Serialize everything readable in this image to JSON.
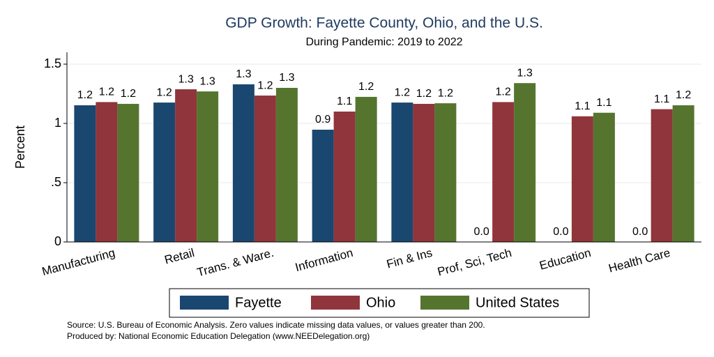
{
  "chart_data": {
    "type": "bar",
    "title": "GDP Growth: Fayette County, Ohio, and the U.S.",
    "subtitle": "During Pandemic: 2019 to 2022",
    "y_label": "Percent",
    "categories": [
      "Manufacturing",
      "Retail",
      "Trans. & Ware.",
      "Information",
      "Fin & Ins",
      "Prof, Sci, Tech",
      "Education",
      "Health Care"
    ],
    "series": [
      {
        "name": "Fayette",
        "color": "#1a476f",
        "values": [
          1.153,
          1.176,
          1.33,
          0.947,
          1.176,
          0,
          0,
          0
        ],
        "value_labels": [
          "1.2",
          "1.2",
          "1.3",
          "0.9",
          "1.2",
          "0.0",
          "0.0",
          "0.0"
        ]
      },
      {
        "name": "Ohio",
        "color": "#90353b",
        "values": [
          1.18,
          1.288,
          1.235,
          1.1,
          1.165,
          1.18,
          1.06,
          1.12
        ],
        "value_labels": [
          "1.2",
          "1.3",
          "1.2",
          "1.1",
          "1.2",
          "1.2",
          "1.1",
          "1.1"
        ]
      },
      {
        "name": "United States",
        "color": "#55752f",
        "values": [
          1.165,
          1.27,
          1.3,
          1.224,
          1.17,
          1.34,
          1.09,
          1.153
        ],
        "value_labels": [
          "1.2",
          "1.3",
          "1.3",
          "1.2",
          "1.2",
          "1.3",
          "1.1",
          "1.2"
        ]
      }
    ],
    "ylim": [
      0,
      1.6
    ],
    "yticks": [
      0,
      {
        "value": 0.5,
        "label": ".5"
      },
      1,
      1.5
    ],
    "grid": true,
    "legend": "bottom",
    "notes": [
      "Source: U.S. Bureau of Economic Analysis. Zero values indicate missing data values, or values greater than 200.",
      "Produced by: National Economic Education Delegation (www.NEEDelegation.org)"
    ]
  }
}
